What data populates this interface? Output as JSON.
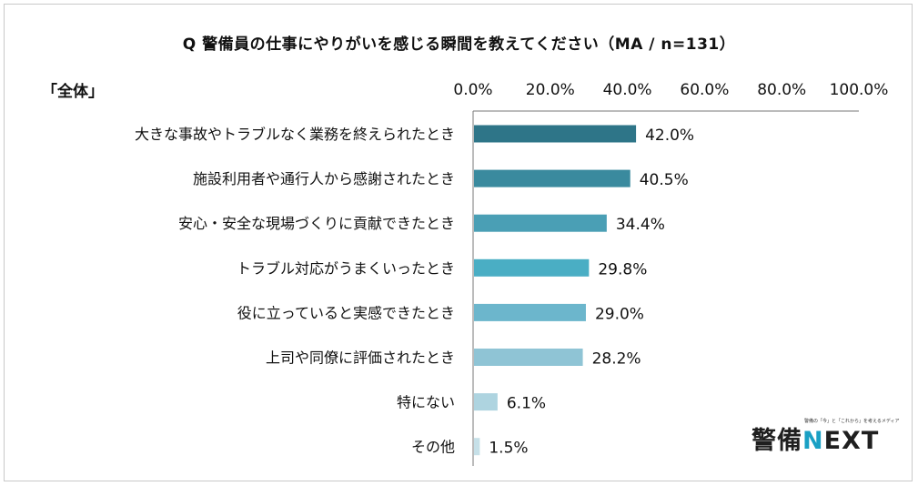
{
  "chart_data": {
    "type": "bar",
    "orientation": "horizontal",
    "title": "Q 警備員の仕事にやりがいを感じる瞬間を教えてください（MA / n=131）",
    "group_label": "「全体」",
    "xlim": [
      0,
      100
    ],
    "tick_labels": [
      "0.0%",
      "20.0%",
      "40.0%",
      "60.0%",
      "80.0%",
      "100.0%"
    ],
    "categories": [
      "大きな事故やトラブルなく業務を終えられたとき",
      "施設利用者や通行人から感謝されたとき",
      "安心・安全な現場づくりに貢献できたとき",
      "トラブル対応がうまくいったとき",
      "役に立っていると実感できたとき",
      "上司や同僚に評価されたとき",
      "特にない",
      "その他"
    ],
    "values": [
      42.0,
      40.5,
      34.4,
      29.8,
      29.0,
      28.2,
      6.1,
      1.5
    ],
    "value_labels": [
      "42.0%",
      "40.5%",
      "34.4%",
      "29.8%",
      "29.0%",
      "28.2%",
      "6.1%",
      "1.5%"
    ],
    "bar_colors": [
      "#2e7588",
      "#3a8a9e",
      "#4a9fb5",
      "#4aaec4",
      "#6cb6cc",
      "#8fc4d5",
      "#aed4e0",
      "#c6e0e8"
    ],
    "grid": false
  },
  "logo": {
    "main": "警備",
    "next_prefix": "N",
    "next_rest": "EXT",
    "tagline": "警備の「今」と「これから」を考えるメディア"
  }
}
